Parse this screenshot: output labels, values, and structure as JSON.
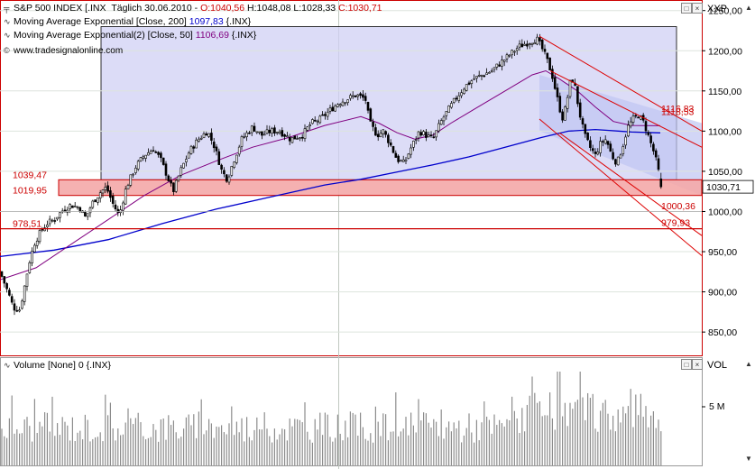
{
  "chart_data": {
    "type": "candlestick",
    "instrument": "S&P 500 INDEX [.INX",
    "interval": "Täglich",
    "date": "30.06.2010",
    "ohlc_text": {
      "open": "O:1040,56",
      "high": "H:1048,08",
      "low": "L:1028,33",
      "close": "C:1030,71"
    },
    "indicators": [
      {
        "name": "Moving Average Exponential [Close, 200]",
        "value": "1097,83",
        "source": "{.INX}",
        "color": "#0000cc"
      },
      {
        "name": "Moving Average Exponential(2) [Close, 50]",
        "value": "1106,69",
        "source": "{.INX}",
        "color": "#800080"
      }
    ],
    "watermark": "www.tradesignalonline.com",
    "y_axis": {
      "title": "XXP",
      "range": [
        821,
        1262
      ],
      "ticks": [
        "1250,00",
        "1200,00",
        "1150,00",
        "1100,00",
        "1050,00",
        "1000,00",
        "950,00",
        "900,00",
        "850,00"
      ],
      "tick_values": [
        1250,
        1200,
        1150,
        1100,
        1050,
        1000,
        950,
        900,
        850
      ]
    },
    "last_price_label": "1030,71",
    "horizontal_levels": [
      {
        "label": "1039,47",
        "value": 1039.47,
        "side": "left"
      },
      {
        "label": "1019,95",
        "value": 1019.95,
        "side": "left"
      },
      {
        "label": "978,51",
        "value": 978.51,
        "side": "left"
      },
      {
        "label": "1000,36",
        "value": 1000.36,
        "side": "right"
      },
      {
        "label": "979,93",
        "value": 979.93,
        "side": "right"
      }
    ],
    "right_labels": [
      "1116,83",
      "1118,53"
    ],
    "waypoints": [
      [
        0,
        925
      ],
      [
        8,
        902
      ],
      [
        15,
        880
      ],
      [
        22,
        878
      ],
      [
        26,
        900
      ],
      [
        32,
        935
      ],
      [
        38,
        960
      ],
      [
        45,
        975
      ],
      [
        52,
        985
      ],
      [
        60,
        990
      ],
      [
        68,
        1000
      ],
      [
        78,
        1008
      ],
      [
        88,
        1005
      ],
      [
        95,
        992
      ],
      [
        102,
        1010
      ],
      [
        112,
        1025
      ],
      [
        118,
        1030
      ],
      [
        125,
        1010
      ],
      [
        132,
        995
      ],
      [
        140,
        1030
      ],
      [
        150,
        1055
      ],
      [
        160,
        1070
      ],
      [
        170,
        1078
      ],
      [
        178,
        1065
      ],
      [
        185,
        1045
      ],
      [
        192,
        1025
      ],
      [
        200,
        1050
      ],
      [
        210,
        1075
      ],
      [
        220,
        1090
      ],
      [
        230,
        1100
      ],
      [
        238,
        1080
      ],
      [
        246,
        1050
      ],
      [
        252,
        1040
      ],
      [
        258,
        1060
      ],
      [
        268,
        1090
      ],
      [
        280,
        1105
      ],
      [
        290,
        1095
      ],
      [
        300,
        1100
      ],
      [
        310,
        1100
      ],
      [
        322,
        1090
      ],
      [
        335,
        1095
      ],
      [
        345,
        1110
      ],
      [
        355,
        1115
      ],
      [
        365,
        1125
      ],
      [
        375,
        1135
      ],
      [
        385,
        1140
      ],
      [
        395,
        1145
      ],
      [
        405,
        1140
      ],
      [
        410,
        1110
      ],
      [
        418,
        1095
      ],
      [
        425,
        1100
      ],
      [
        432,
        1085
      ],
      [
        440,
        1065
      ],
      [
        448,
        1060
      ],
      [
        456,
        1080
      ],
      [
        465,
        1100
      ],
      [
        472,
        1095
      ],
      [
        480,
        1090
      ],
      [
        488,
        1110
      ],
      [
        496,
        1125
      ],
      [
        505,
        1140
      ],
      [
        515,
        1155
      ],
      [
        525,
        1165
      ],
      [
        535,
        1170
      ],
      [
        545,
        1175
      ],
      [
        555,
        1185
      ],
      [
        565,
        1195
      ],
      [
        575,
        1205
      ],
      [
        585,
        1210
      ],
      [
        595,
        1215
      ],
      [
        600,
        1205
      ],
      [
        606,
        1190
      ],
      [
        612,
        1170
      ],
      [
        616,
        1150
      ],
      [
        620,
        1130
      ],
      [
        624,
        1115
      ],
      [
        628,
        1135
      ],
      [
        632,
        1160
      ],
      [
        636,
        1165
      ],
      [
        642,
        1125
      ],
      [
        648,
        1095
      ],
      [
        654,
        1080
      ],
      [
        660,
        1070
      ],
      [
        666,
        1085
      ],
      [
        672,
        1090
      ],
      [
        678,
        1070
      ],
      [
        684,
        1060
      ],
      [
        690,
        1080
      ],
      [
        696,
        1105
      ],
      [
        702,
        1115
      ],
      [
        708,
        1120
      ],
      [
        714,
        1110
      ],
      [
        720,
        1090
      ],
      [
        726,
        1070
      ],
      [
        730,
        1050
      ],
      [
        733,
        1031
      ]
    ],
    "ema_fast_points": [
      [
        0,
        915
      ],
      [
        40,
        930
      ],
      [
        80,
        960
      ],
      [
        120,
        990
      ],
      [
        160,
        1020
      ],
      [
        200,
        1045
      ],
      [
        240,
        1063
      ],
      [
        280,
        1080
      ],
      [
        320,
        1092
      ],
      [
        360,
        1107
      ],
      [
        400,
        1118
      ],
      [
        420,
        1110
      ],
      [
        440,
        1098
      ],
      [
        460,
        1090
      ],
      [
        480,
        1095
      ],
      [
        500,
        1110
      ],
      [
        530,
        1130
      ],
      [
        560,
        1150
      ],
      [
        590,
        1170
      ],
      [
        605,
        1175
      ],
      [
        620,
        1165
      ],
      [
        640,
        1150
      ],
      [
        660,
        1130
      ],
      [
        680,
        1112
      ],
      [
        700,
        1107
      ],
      [
        732,
        1106.7
      ]
    ],
    "ema_slow_points": [
      [
        0,
        944
      ],
      [
        60,
        952
      ],
      [
        120,
        965
      ],
      [
        180,
        985
      ],
      [
        240,
        1003
      ],
      [
        300,
        1018
      ],
      [
        360,
        1033
      ],
      [
        400,
        1040
      ],
      [
        440,
        1049
      ],
      [
        480,
        1058
      ],
      [
        520,
        1068
      ],
      [
        560,
        1080
      ],
      [
        600,
        1092
      ],
      [
        630,
        1100
      ],
      [
        660,
        1102
      ],
      [
        700,
        1099
      ],
      [
        732,
        1097.8
      ]
    ],
    "volume_panel": {
      "title": "Volume [None]",
      "value": "0",
      "source": "{.INX}",
      "axis_title": "VOL",
      "tick_label": "5 M"
    }
  }
}
